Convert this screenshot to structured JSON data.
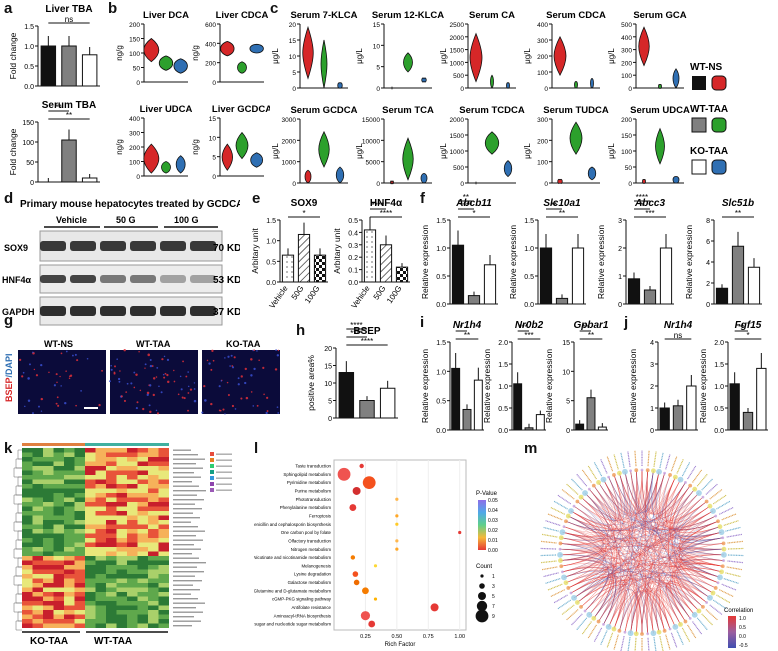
{
  "colors": {
    "wt_ns": "#111111",
    "wt_ns_serum": "#d62728",
    "wt_taa": "#808080",
    "wt_taa_serum": "#2ca02c",
    "ko_taa": "#ffffff",
    "ko_taa_serum": "#2f6fb3"
  },
  "letters": [
    "a",
    "b",
    "c",
    "d",
    "e",
    "f",
    "g",
    "h",
    "i",
    "j",
    "k",
    "l",
    "m"
  ],
  "legend": {
    "groups": [
      "WT-NS",
      "WT-TAA",
      "KO-TAA"
    ]
  },
  "panel_a": {
    "charts": [
      {
        "title": "Liver TBA",
        "ylabel": "Fold change",
        "ylim": [
          0,
          1.5
        ],
        "ticks": [
          "0.0",
          "0.5",
          "1.0",
          "1.5"
        ],
        "values": [
          1.0,
          1.0,
          0.78
        ],
        "sig": [
          "ns"
        ]
      },
      {
        "title": "Serum TBA",
        "ylabel": "Fold change",
        "ylim": [
          0,
          150
        ],
        "ticks": [
          "0",
          "50",
          "100",
          "150"
        ],
        "values": [
          0,
          105,
          10
        ],
        "sig": [
          "**",
          "**"
        ]
      }
    ]
  },
  "panel_b": {
    "charts": [
      {
        "title": "Liver DCA",
        "ylabel": "ng/g",
        "ylim": [
          0,
          200
        ],
        "ticks": [
          "0",
          "50",
          "100",
          "150",
          "200"
        ]
      },
      {
        "title": "Liver CDCA",
        "ylabel": "ng/g",
        "ylim": [
          0,
          600
        ],
        "ticks": [
          "0",
          "200",
          "400",
          "600"
        ]
      },
      {
        "title": "Liver UDCA",
        "ylabel": "ng/g",
        "ylim": [
          0,
          400
        ],
        "ticks": [
          "0",
          "100",
          "200",
          "300",
          "400"
        ]
      },
      {
        "title": "Liver GCDCA",
        "ylabel": "ng/g",
        "ylim": [
          0,
          15
        ],
        "ticks": [
          "0",
          "5",
          "10",
          "15"
        ]
      }
    ]
  },
  "panel_c": {
    "charts": [
      {
        "title": "Serum 7-KLCA",
        "ylabel": "μg/L",
        "ticks": [
          "0",
          "5",
          "10",
          "15",
          "20"
        ]
      },
      {
        "title": "Serum 12-KLCA",
        "ylabel": "μg/L",
        "ticks": [
          "0",
          "5",
          "10",
          "15"
        ]
      },
      {
        "title": "Serum CA",
        "ylabel": "μg/L",
        "ticks": [
          "0",
          "500",
          "1000",
          "1500",
          "2000",
          "2500"
        ]
      },
      {
        "title": "Serum CDCA",
        "ylabel": "μg/L",
        "ticks": [
          "0",
          "100",
          "200",
          "300",
          "400"
        ]
      },
      {
        "title": "Serum GCA",
        "ylabel": "μg/L",
        "ticks": [
          "0",
          "100",
          "200",
          "300",
          "400",
          "500"
        ]
      },
      {
        "title": "Serum GCDCA",
        "ylabel": "μg/L",
        "ticks": [
          "0",
          "1000",
          "2000",
          "3000"
        ]
      },
      {
        "title": "Serum TCA",
        "ylabel": "μg/L",
        "ticks": [
          "0",
          "5000",
          "10000",
          "15000"
        ]
      },
      {
        "title": "Serum TCDCA",
        "ylabel": "μg/L",
        "ticks": [
          "0",
          "500",
          "1000",
          "1500",
          "2000"
        ]
      },
      {
        "title": "Serum TUDCA",
        "ylabel": "μg/L",
        "ticks": [
          "0",
          "100",
          "200",
          "300"
        ]
      },
      {
        "title": "Serum UDCA",
        "ylabel": "μg/L",
        "ticks": [
          "0",
          "50",
          "100",
          "150",
          "200"
        ]
      }
    ]
  },
  "panel_d": {
    "title": "Primary mouse hepatocytes treated by GCDCA",
    "lanes": [
      "Vehicle",
      "50 G",
      "100 G"
    ],
    "bands": [
      {
        "name": "SOX9",
        "size": "70 KD"
      },
      {
        "name": "HNF4α",
        "size": "53 KD"
      },
      {
        "name": "GAPDH",
        "size": "37 KD"
      }
    ]
  },
  "panel_e": {
    "ylabel": "Arbitary unit",
    "xcats": [
      "Vehicle",
      "50G",
      "100G"
    ],
    "charts": [
      {
        "title": "SOX9",
        "ticks": [
          "0.0",
          "0.5",
          "1.0",
          "1.5"
        ],
        "values": [
          0.65,
          1.15,
          0.65
        ],
        "ylim": [
          0,
          1.5
        ],
        "sig": [
          "*"
        ]
      },
      {
        "title": "HNF4α",
        "ticks": [
          "0.0",
          "0.1",
          "0.2",
          "0.3",
          "0.4",
          "0.5"
        ],
        "values": [
          0.42,
          0.3,
          0.12
        ],
        "ylim": [
          0,
          0.5
        ],
        "sig": [
          "****",
          "****"
        ]
      }
    ]
  },
  "panel_f": {
    "ylabel": "Relative expression",
    "charts": [
      {
        "title": "Abcb11",
        "ticks": [
          "0.0",
          "0.5",
          "1.0",
          "1.5"
        ],
        "values": [
          1.05,
          0.15,
          0.7
        ],
        "ylim": [
          0,
          1.5
        ],
        "sig": [
          "*",
          "****",
          "**"
        ]
      },
      {
        "title": "Slc10a1",
        "ticks": [
          "0.0",
          "0.5",
          "1.0",
          "1.5"
        ],
        "values": [
          1.0,
          0.1,
          1.0
        ],
        "ylim": [
          0,
          1.5
        ],
        "sig": [
          "**",
          "**"
        ]
      },
      {
        "title": "Abcc3",
        "ticks": [
          "0",
          "1",
          "2",
          "3"
        ],
        "values": [
          0.9,
          0.5,
          2.0
        ],
        "ylim": [
          0,
          3
        ],
        "sig": [
          "***",
          "*",
          "****"
        ]
      },
      {
        "title": "Slc51b",
        "ticks": [
          "0",
          "2",
          "4",
          "6",
          "8"
        ],
        "values": [
          1.5,
          5.5,
          3.5
        ],
        "ylim": [
          0,
          8
        ],
        "sig": [
          "**"
        ]
      }
    ]
  },
  "panel_g": {
    "ylabel": "BSEP/DAPI",
    "images": [
      "WT-NS",
      "WT-TAA",
      "KO-TAA"
    ]
  },
  "panel_h": {
    "title": "BSEP",
    "ylabel": "positive area%",
    "ticks": [
      "0",
      "5",
      "10",
      "15",
      "20"
    ],
    "ylim": [
      0,
      20
    ],
    "values": [
      13,
      5,
      8.5
    ],
    "sig": [
      "****",
      "****",
      "****"
    ]
  },
  "panel_i": {
    "ylabel": "Relative expression",
    "charts": [
      {
        "title": "Nr1h4",
        "ticks": [
          "0.0",
          "0.5",
          "1.0",
          "1.5"
        ],
        "values": [
          1.05,
          0.35,
          0.85
        ],
        "ylim": [
          0,
          1.5
        ],
        "sig": [
          "**",
          "*"
        ]
      },
      {
        "title": "Nr0b2",
        "ticks": [
          "0.0",
          "0.5",
          "1.0",
          "1.5",
          "2.0"
        ],
        "values": [
          1.05,
          0.05,
          0.35
        ],
        "ylim": [
          0,
          2
        ],
        "sig": [
          "***",
          "***"
        ]
      },
      {
        "title": "Gpbar1",
        "ticks": [
          "0",
          "5",
          "10",
          "15"
        ],
        "values": [
          1.0,
          5.5,
          0.5
        ],
        "ylim": [
          0,
          15
        ],
        "sig": [
          "**",
          "**"
        ]
      }
    ]
  },
  "panel_j": {
    "ylabel": "Relative expression",
    "charts": [
      {
        "title": "Nr1h4",
        "ticks": [
          "0",
          "1",
          "2",
          "3",
          "4"
        ],
        "values": [
          1.0,
          1.1,
          2.0
        ],
        "ylim": [
          0,
          4
        ],
        "sig": [
          "ns"
        ]
      },
      {
        "title": "Fgf15",
        "ticks": [
          "0.0",
          "0.5",
          "1.0",
          "1.5",
          "2.0"
        ],
        "values": [
          1.05,
          0.4,
          1.4
        ],
        "ylim": [
          0,
          2
        ],
        "sig": [
          "*",
          "**"
        ]
      }
    ]
  },
  "panel_k": {
    "groups": [
      "KO-TAA",
      "WT-TAA"
    ]
  },
  "panel_l": {
    "xlabel": "Rich Factor",
    "xticks": [
      "0.25",
      "0.50",
      "0.75",
      "1.00"
    ],
    "pathways": [
      "Taste transduction",
      "Sphingolipid metabolism",
      "Pyrimidine metabolism",
      "Purine metabolism",
      "Phototransduction",
      "Phenylalanine metabolism",
      "Ferroptosis",
      "Penicillin and cephalosporin biosynthesis",
      "One carbon pool by folate",
      "Olfactory transduction",
      "Nitrogen metabolism",
      "Nicotinate and nicotinamide metabolism",
      "Melanogenesis",
      "Lysine degradation",
      "Galactose metabolism",
      "D-Glutamine and D-glutamate metabolism",
      "cGMP-PKG signaling pathway",
      "Antifolate resistance",
      "Aminoacyl-tRNA biosynthesis",
      "Amino sugar and nucleotide sugar metabolism"
    ],
    "rich": [
      0.22,
      0.08,
      0.28,
      0.18,
      0.5,
      0.15,
      0.5,
      0.5,
      1.0,
      0.5,
      0.5,
      0.15,
      0.33,
      0.17,
      0.18,
      0.25,
      0.33,
      0.8,
      0.25,
      0.3
    ],
    "count": [
      2,
      9,
      9,
      5,
      1,
      4,
      1,
      1,
      1,
      1,
      1,
      2,
      1,
      3,
      3,
      4,
      1,
      5,
      6,
      4
    ],
    "pvalue_title": "P-Value",
    "pvalue_ticks": [
      "0.05",
      "0.04",
      "0.03",
      "0.02",
      "0.01",
      "0.00"
    ],
    "count_title": "Count",
    "count_ticks": [
      "1",
      "3",
      "5",
      "7",
      "9"
    ]
  },
  "panel_m": {
    "legend_title": "Correlation",
    "ticks": [
      "1.0",
      "0.5",
      "0.0",
      "-0.5"
    ]
  }
}
